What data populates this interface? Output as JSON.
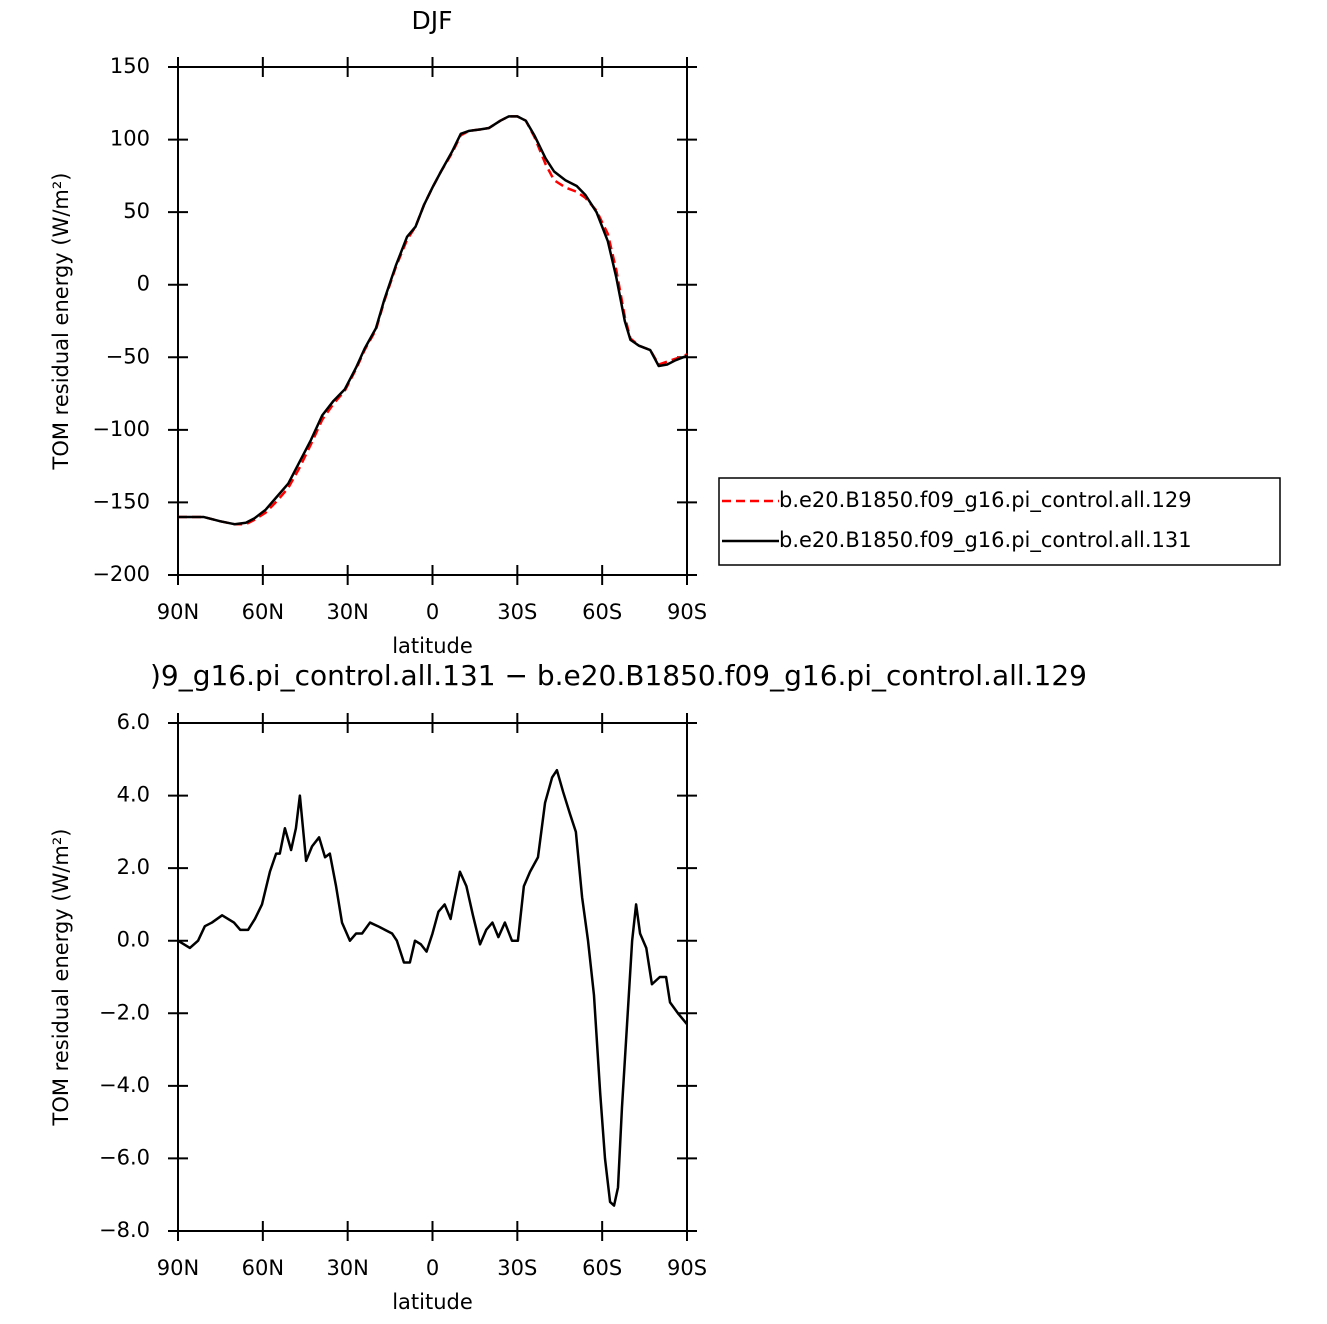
{
  "chart_data": [
    {
      "type": "line",
      "title": "DJF",
      "xlabel": "latitude",
      "ylabel": "TOM residual energy (W/m²)",
      "x": [
        90,
        81,
        75,
        70,
        66,
        63,
        59,
        55,
        51,
        47,
        43,
        39,
        35,
        31,
        27,
        24,
        20,
        17,
        13,
        9,
        6,
        3,
        0,
        -3,
        -7,
        -10,
        -13,
        -17,
        -20,
        -24,
        -27,
        -30,
        -33,
        -36,
        -40,
        -43,
        -47,
        -51,
        -54,
        -58,
        -62,
        -65,
        -68,
        -70,
        -73,
        -77,
        -80,
        -83,
        -86,
        -90
      ],
      "series": [
        {
          "name": "b.e20.B1850.f09_g16.pi_control.all.129",
          "color": "#ff0000",
          "dash": true,
          "values": [
            -160,
            -160,
            -163,
            -165,
            -165,
            -162,
            -157,
            -149,
            -140,
            -126,
            -110,
            -93,
            -82,
            -73,
            -58,
            -45,
            -31,
            -11,
            12,
            31,
            40,
            55,
            67,
            78,
            91,
            103,
            106,
            107,
            108,
            113,
            116,
            116,
            113,
            102,
            83,
            72,
            67,
            64,
            60,
            51,
            35,
            10,
            -22,
            -37,
            -42,
            -45,
            -55,
            -53,
            -51,
            -48
          ]
        },
        {
          "name": "b.e20.B1850.f09_g16.pi_control.all.131",
          "color": "#000000",
          "dash": false,
          "values": [
            -160,
            -160,
            -163,
            -165,
            -164,
            -161,
            -155,
            -146,
            -137,
            -122,
            -107,
            -90,
            -80,
            -72,
            -57,
            -44,
            -30,
            -10,
            13,
            33,
            40,
            55,
            67,
            78,
            92,
            104,
            106,
            107,
            108,
            113,
            116,
            116,
            113,
            103,
            87,
            78,
            72,
            68,
            62,
            50,
            30,
            5,
            -25,
            -38,
            -42,
            -45,
            -56,
            -55,
            -52,
            -49
          ]
        }
      ],
      "xlim": [
        90,
        -90
      ],
      "xticks": [
        {
          "value": 90,
          "label": "90N"
        },
        {
          "value": 60,
          "label": "60N"
        },
        {
          "value": 30,
          "label": "30N"
        },
        0,
        {
          "value": -30,
          "label": "30S"
        },
        {
          "value": -60,
          "label": "60S"
        },
        {
          "value": -90,
          "label": "90S"
        }
      ],
      "ylim": [
        -200,
        150
      ],
      "yticks": [
        {
          "value": -200,
          "label": "−200"
        },
        {
          "value": -150,
          "label": "−150"
        },
        {
          "value": -100,
          "label": "−100"
        },
        {
          "value": -50,
          "label": "−50"
        },
        0,
        50,
        100,
        150
      ],
      "legend": "right"
    },
    {
      "type": "line",
      "title": ")9_g16.pi_control.all.131 − b.e20.B1850.f09_g16.pi_control.all.129",
      "xlabel": "latitude",
      "ylabel": "TOM residual energy (W/m²)",
      "color": "#000000",
      "x": [
        90,
        85.8,
        82.9,
        80.5,
        78,
        74.4,
        72.3,
        70.2,
        68,
        65.2,
        62.8,
        60.3,
        57.5,
        55.3,
        54,
        52.2,
        50,
        48.3,
        46.9,
        44.7,
        42.6,
        40.1,
        38,
        36.3,
        34.1,
        32,
        29.2,
        27,
        24.9,
        22.1,
        19.3,
        16.8,
        14.3,
        12.6,
        10.1,
        8,
        6.2,
        4.1,
        2.1,
        0,
        -2.1,
        -4.3,
        -6.4,
        -7.6,
        -9.7,
        -12,
        -14.3,
        -16.8,
        -19,
        -21.2,
        -23.3,
        -25.6,
        -28.1,
        -30.2,
        -32.3,
        -34.5,
        -37.3,
        -39.8,
        -42.3,
        -44,
        -46.2,
        -48.6,
        -50.7,
        -52.9,
        -55,
        -57.1,
        -59.3,
        -61,
        -62.8,
        -64.2,
        -65.6,
        -67,
        -68.8,
        -70.6,
        -72,
        -73.4,
        -75.6,
        -77.6,
        -80.4,
        -82.6,
        -84,
        -86.8,
        -90
      ],
      "values": [
        0.0,
        -0.2,
        0.0,
        0.4,
        0.5,
        0.7,
        0.6,
        0.5,
        0.3,
        0.3,
        0.6,
        1.0,
        1.9,
        2.4,
        2.4,
        3.1,
        2.5,
        3.1,
        4.0,
        2.2,
        2.6,
        2.85,
        2.3,
        2.4,
        1.5,
        0.5,
        0.0,
        0.2,
        0.2,
        0.5,
        0.4,
        0.3,
        0.2,
        0.0,
        -0.6,
        -0.6,
        0.0,
        -0.1,
        -0.3,
        0.2,
        0.8,
        1.0,
        0.6,
        1.1,
        1.9,
        1.5,
        0.7,
        -0.1,
        0.3,
        0.5,
        0.1,
        0.5,
        0.0,
        0.0,
        1.5,
        1.9,
        2.3,
        3.8,
        4.5,
        4.7,
        4.1,
        3.5,
        3.0,
        1.2,
        0.0,
        -1.5,
        -4.2,
        -6.0,
        -7.2,
        -7.3,
        -6.8,
        -4.6,
        -2.3,
        0.0,
        1.0,
        0.2,
        -0.2,
        -1.2,
        -1.0,
        -1.0,
        -1.7,
        -2.0,
        -2.3
      ],
      "xlim": [
        90,
        -90
      ],
      "xticks": [
        {
          "value": 90,
          "label": "90N"
        },
        {
          "value": 60,
          "label": "60N"
        },
        {
          "value": 30,
          "label": "30N"
        },
        0,
        {
          "value": -30,
          "label": "30S"
        },
        {
          "value": -60,
          "label": "60S"
        },
        {
          "value": -90,
          "label": "90S"
        }
      ],
      "ylim": [
        -8,
        6
      ],
      "yticks": [
        {
          "value": -8,
          "label": "−8.0"
        },
        {
          "value": -6,
          "label": "−6.0"
        },
        {
          "value": -4,
          "label": "−4.0"
        },
        {
          "value": -2,
          "label": "−2.0"
        },
        {
          "value": 0,
          "label": "0.0"
        },
        {
          "value": 2,
          "label": "2.0"
        },
        {
          "value": 4,
          "label": "4.0"
        },
        {
          "value": 6,
          "label": "6.0"
        }
      ]
    }
  ]
}
